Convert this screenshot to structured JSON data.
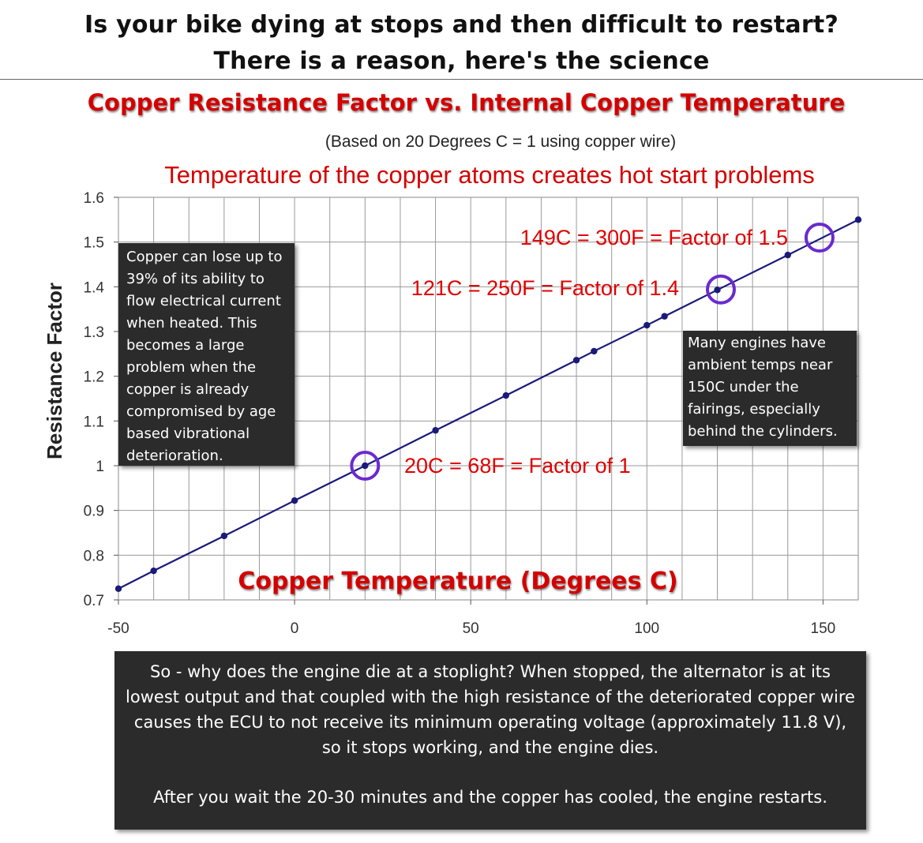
{
  "header": {
    "line1": "Is your bike dying at stops and then difficult to restart?",
    "line2": "There is a reason, here's the science"
  },
  "chart_data": {
    "type": "line",
    "title": "Copper Resistance Factor vs. Internal Copper Temperature",
    "subtitle": "(Based on 20 Degrees C = 1 using copper wire)",
    "note": "Temperature of the copper atoms creates hot start problems",
    "xlabel": "Copper Temperature (Degrees C)",
    "ylabel": "Resistance Factor",
    "xlim": [
      -50,
      160
    ],
    "ylim": [
      0.7,
      1.6
    ],
    "xticks": [
      -50,
      0,
      50,
      100,
      150
    ],
    "yticks": [
      "0.7",
      "0.8",
      "0.9",
      "1",
      "1.1",
      "1.2",
      "1.3",
      "1.4",
      "1.5",
      "1.6"
    ],
    "grid": true,
    "line_color": "#1a1a7a",
    "series": [
      {
        "x": [
          -50,
          -40,
          -20,
          0,
          20,
          40,
          60,
          80,
          85,
          100,
          105,
          120,
          140,
          160
        ],
        "y": [
          0.725,
          0.765,
          0.843,
          0.922,
          1.0,
          1.079,
          1.157,
          1.236,
          1.256,
          1.314,
          1.334,
          1.393,
          1.471,
          1.55
        ]
      }
    ],
    "highlights": [
      {
        "x": 20,
        "y": 1.0,
        "label": "20C = 68F = Factor of 1"
      },
      {
        "x": 121,
        "y": 1.394,
        "label": "121C = 250F = Factor of 1.4"
      },
      {
        "x": 149,
        "y": 1.51,
        "label": "149C = 300F = Factor of 1.5"
      }
    ],
    "highlight_color": "#6a2ad0",
    "annotation_color": "#e00000"
  },
  "callouts": {
    "left": "Copper can lose up to 39% of its ability to flow electrical current when heated. This becomes a large problem when the copper is already compromised by age based vibrational deterioration.",
    "right": "Many engines have ambient temps near 150C under the fairings, especially behind the cylinders.",
    "bottom_p1": "So - why does the engine die at a stoplight? When stopped, the alternator is at its lowest output and that coupled with the high resistance of the deteriorated copper wire causes the ECU to not receive its minimum operating voltage (approximately 11.8 V), so it stops working, and the engine dies.",
    "bottom_p2": "After you wait the 20-30 minutes and the copper has cooled, the engine restarts."
  }
}
